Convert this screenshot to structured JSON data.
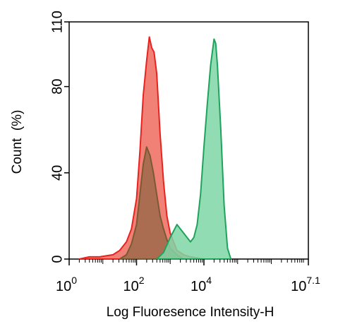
{
  "chart_data": {
    "type": "area",
    "title": "",
    "xlabel": "Log Fluoresence Intensity-H",
    "ylabel": "Count  (%)",
    "xscale": "log10",
    "xlim": [
      0,
      7.1
    ],
    "ylim": [
      0,
      110
    ],
    "x_ticks": [
      {
        "exp": 0,
        "base": "10",
        "sup": "0"
      },
      {
        "exp": 2,
        "base": "10",
        "sup": "2"
      },
      {
        "exp": 4,
        "base": "10",
        "sup": "4"
      },
      {
        "exp": 7.1,
        "base": "10",
        "sup": "7.1"
      }
    ],
    "y_ticks": [
      {
        "value": 0,
        "label": "0"
      },
      {
        "value": 40,
        "label": "40"
      },
      {
        "value": 80,
        "label": "80"
      },
      {
        "value": 110,
        "label": "110"
      }
    ],
    "grid": false,
    "legend": "none",
    "series": [
      {
        "color": "#e8231e",
        "fill": "#ef6a5f",
        "x": [
          0.3,
          0.6,
          0.9,
          1.1,
          1.3,
          1.5,
          1.7,
          1.85,
          2.0,
          2.1,
          2.2,
          2.3,
          2.38,
          2.45,
          2.52,
          2.6,
          2.7,
          2.8,
          2.9,
          3.0,
          3.1,
          3.2,
          3.4,
          3.6,
          3.8,
          4.0
        ],
        "values": [
          0,
          1,
          1,
          1.5,
          2,
          4,
          8,
          14,
          28,
          50,
          76,
          92,
          103,
          98,
          96,
          86,
          58,
          36,
          20,
          12,
          8,
          4,
          2,
          1,
          0.5,
          0
        ]
      },
      {
        "color": "#7a5a32",
        "fill": "#a36a4c",
        "x": [
          1.5,
          1.7,
          1.85,
          2.0,
          2.1,
          2.2,
          2.3,
          2.4,
          2.5,
          2.6,
          2.7,
          2.8,
          2.9,
          3.0,
          3.2,
          3.4
        ],
        "values": [
          0,
          2,
          7,
          16,
          30,
          44,
          52,
          48,
          40,
          30,
          20,
          14,
          9,
          5,
          2,
          0
        ]
      },
      {
        "color": "#1fa35c",
        "fill": "#7fd6a6",
        "x": [
          2.6,
          2.8,
          3.0,
          3.2,
          3.4,
          3.6,
          3.7,
          3.8,
          3.9,
          4.0,
          4.1,
          4.2,
          4.3,
          4.35,
          4.4,
          4.5,
          4.6,
          4.7,
          4.8
        ],
        "values": [
          0,
          3,
          10,
          16,
          12,
          8,
          10,
          16,
          30,
          52,
          72,
          90,
          102,
          100,
          90,
          60,
          25,
          5,
          0
        ]
      }
    ]
  }
}
